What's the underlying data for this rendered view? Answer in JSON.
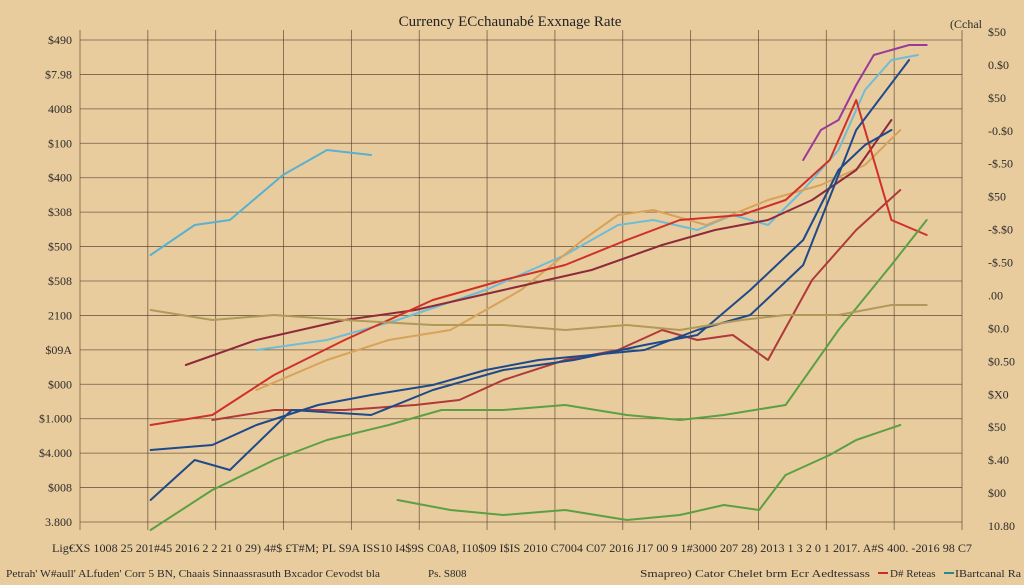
{
  "chart_data": {
    "type": "line",
    "title": "Currency ECchaunabé Exxnage Rate",
    "corner_label": "(Cchal",
    "y_left_ticks": [
      "$490",
      "$7.98",
      "4008",
      "$100",
      "$400",
      "$308",
      "$500",
      "$508",
      "2100",
      "$09A",
      "$000",
      "$1.000",
      "$4.000",
      "$008",
      "3.800"
    ],
    "y_right_ticks": [
      "$50",
      "0.$0",
      "$50",
      "-0.$0",
      "-$.50",
      "$50",
      "-$.$0",
      "-$.50",
      ".00",
      "$0.0",
      "$0.50",
      "$X0",
      "$50",
      "$.40",
      "$00",
      "10.80"
    ],
    "x_label": "Lig€XS 1008 25 201#45 2016 2 2 21 0 29) 4#$ £T#M; PL S9A ISS10 I4$9S C0A8, I10$09 I$IS 2010 C7004 C07 2016 J17 00 9 1#3000 207 28) 2013 1 3 2 0 1 2017. A#S 400. -2016 98 C7",
    "footer": [
      "Petrah' W#aull' ALfuden' Corr 5 BN,  Chaais Sinnaassrasuth Bxcador Cevodst bla",
      "Ps. S808",
      "Smapreo) Cator Chelet brm Ecr Aedtessass",
      "D# Reteas",
      "IBartcanal Ra"
    ],
    "legend_colors": [
      "#d02a2a",
      "#2a8a8a"
    ],
    "x_range": [
      0,
      100
    ],
    "y_range": [
      0,
      100
    ],
    "grid": true,
    "series": [
      {
        "color": "#5ab0cf",
        "x": [
          8,
          13,
          17,
          23,
          28,
          33
        ],
        "y": [
          55,
          61,
          62,
          71,
          76,
          75
        ]
      },
      {
        "color": "#6fbcd8",
        "x": [
          20,
          28,
          36,
          46,
          55,
          61,
          65,
          70,
          74,
          78,
          82,
          86,
          89,
          92,
          95
        ],
        "y": [
          36,
          38,
          42,
          48,
          55,
          61,
          62,
          60,
          63,
          61,
          68,
          76,
          88,
          94,
          95
        ]
      },
      {
        "color": "#d8a25a",
        "x": [
          20,
          28,
          35,
          42,
          50,
          57,
          61,
          65,
          71,
          78,
          84,
          89,
          93
        ],
        "y": [
          28,
          34,
          38,
          40,
          48,
          58,
          63,
          64,
          61,
          66,
          69,
          73,
          80
        ]
      },
      {
        "color": "#8e2a3a",
        "x": [
          12,
          20,
          30,
          38,
          48,
          58,
          66,
          72,
          78,
          83,
          88,
          92
        ],
        "y": [
          33,
          38,
          42,
          44,
          48,
          52,
          57,
          60,
          62,
          66,
          72,
          82
        ]
      },
      {
        "color": "#d0302a",
        "x": [
          8,
          15,
          22,
          30,
          40,
          48,
          55,
          62,
          68,
          75,
          80,
          85,
          88,
          92,
          96
        ],
        "y": [
          21,
          23,
          31,
          38,
          46,
          50,
          53,
          58,
          62,
          63,
          66,
          74,
          86,
          62,
          59
        ]
      },
      {
        "color": "#b03a3a",
        "x": [
          15,
          22,
          30,
          38,
          43,
          48,
          55,
          61,
          66,
          70,
          74,
          78,
          83,
          88,
          93
        ],
        "y": [
          22,
          24,
          24,
          25,
          26,
          30,
          34,
          36,
          40,
          38,
          39,
          34,
          50,
          60,
          68
        ]
      },
      {
        "color": "#1e4a8a",
        "x": [
          8,
          15,
          20,
          27,
          33,
          40,
          46,
          52,
          58,
          64,
          70,
          76,
          82,
          88,
          94
        ],
        "y": [
          16,
          17,
          21,
          25,
          27,
          29,
          32,
          34,
          35,
          36,
          40,
          43,
          53,
          80,
          94
        ]
      },
      {
        "color": "#1e4a8a",
        "x": [
          8,
          13,
          17,
          24,
          33,
          40,
          48,
          56,
          64,
          70,
          76,
          82,
          86,
          89,
          92
        ],
        "y": [
          6,
          14,
          12,
          24,
          23,
          28,
          32,
          34,
          37,
          39,
          48,
          58,
          72,
          77,
          80
        ]
      },
      {
        "color": "#9a3a9a",
        "x": [
          82,
          84,
          86,
          88,
          90,
          92,
          94,
          96
        ],
        "y": [
          74,
          80,
          82,
          89,
          95,
          96,
          97,
          97
        ]
      },
      {
        "color": "#5ca044",
        "x": [
          8,
          15,
          22,
          28,
          35,
          41,
          48,
          55,
          62,
          68,
          73,
          80,
          86,
          92,
          96
        ],
        "y": [
          0,
          8,
          14,
          18,
          21,
          24,
          24,
          25,
          23,
          22,
          23,
          25,
          40,
          53,
          62
        ]
      },
      {
        "color": "#5ca044",
        "x": [
          36,
          42,
          48,
          55,
          62,
          68,
          73,
          77,
          80,
          85,
          88,
          93
        ],
        "y": [
          6,
          4,
          3,
          4,
          2,
          3,
          5,
          4,
          11,
          15,
          18,
          21
        ]
      },
      {
        "color": "#b09a5a",
        "x": [
          8,
          15,
          22,
          30,
          40,
          48,
          55,
          62,
          68,
          75,
          80,
          86,
          92,
          96
        ],
        "y": [
          44,
          42,
          43,
          42,
          41,
          41,
          40,
          41,
          40,
          42,
          43,
          43,
          45,
          45
        ]
      }
    ]
  }
}
